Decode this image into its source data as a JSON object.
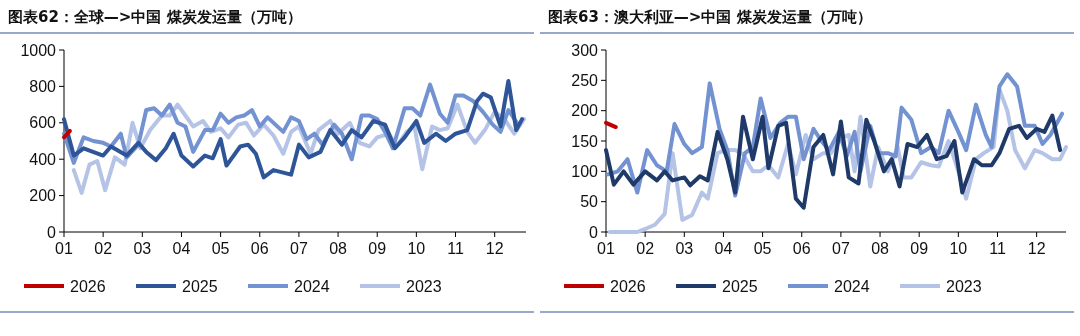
{
  "chart_data": [
    {
      "type": "line",
      "title": "图表62：全球—>中国 煤炭发运量（万吨）",
      "xlim": [
        1,
        12.8
      ],
      "xticks": [
        {
          "value": 1,
          "label": "01"
        },
        {
          "value": 2,
          "label": "02"
        },
        {
          "value": 3,
          "label": "03"
        },
        {
          "value": 4,
          "label": "04"
        },
        {
          "value": 5,
          "label": "05"
        },
        {
          "value": 6,
          "label": "06"
        },
        {
          "value": 7,
          "label": "07"
        },
        {
          "value": 8,
          "label": "08"
        },
        {
          "value": 9,
          "label": "09"
        },
        {
          "value": 10,
          "label": "10"
        },
        {
          "value": 11,
          "label": "11"
        },
        {
          "value": 12,
          "label": "12"
        }
      ],
      "ylim": [
        0,
        1000
      ],
      "yticks": [
        0,
        200,
        400,
        600,
        800,
        1000
      ],
      "grid": false,
      "legend": "bottom",
      "marker": "none",
      "line_style": "solid",
      "series": [
        {
          "name": "2026",
          "color": "#c00000",
          "x": [
            1.0,
            1.15
          ],
          "values": [
            520,
            555
          ]
        },
        {
          "name": "2025",
          "color": "#2e5597",
          "x": [
            1.0,
            1.25,
            1.5,
            2.0,
            2.2,
            2.6,
            2.9,
            3.1,
            3.35,
            3.6,
            3.8,
            4.0,
            4.3,
            4.6,
            4.8,
            5.0,
            5.15,
            5.5,
            5.7,
            5.9,
            6.1,
            6.35,
            6.8,
            7.0,
            7.25,
            7.55,
            7.8,
            8.1,
            8.35,
            8.6,
            8.9,
            9.2,
            9.45,
            9.7,
            10.0,
            10.2,
            10.5,
            10.75,
            11.0,
            11.3,
            11.55,
            11.7,
            11.9,
            12.15,
            12.35,
            12.55,
            12.7
          ],
          "values": [
            620,
            420,
            460,
            420,
            470,
            420,
            490,
            440,
            395,
            460,
            540,
            420,
            360,
            420,
            405,
            510,
            365,
            470,
            480,
            430,
            300,
            340,
            315,
            480,
            410,
            440,
            560,
            480,
            560,
            520,
            610,
            590,
            460,
            520,
            610,
            490,
            540,
            500,
            540,
            560,
            720,
            760,
            740,
            580,
            830,
            560,
            620
          ]
        },
        {
          "name": "2024",
          "color": "#7392d1",
          "x": [
            1.0,
            1.25,
            1.5,
            1.75,
            2.0,
            2.2,
            2.45,
            2.6,
            2.9,
            3.1,
            3.3,
            3.5,
            3.7,
            3.9,
            4.1,
            4.3,
            4.6,
            4.8,
            5.0,
            5.2,
            5.4,
            5.6,
            5.8,
            6.0,
            6.2,
            6.4,
            6.6,
            6.8,
            7.0,
            7.2,
            7.4,
            7.6,
            7.9,
            8.1,
            8.35,
            8.6,
            8.8,
            9.0,
            9.2,
            9.4,
            9.7,
            9.9,
            10.1,
            10.35,
            10.6,
            10.8,
            11.0,
            11.2,
            11.45,
            11.7,
            11.95,
            12.15,
            12.35,
            12.6
          ],
          "values": [
            540,
            380,
            520,
            500,
            490,
            470,
            540,
            410,
            480,
            670,
            680,
            640,
            700,
            600,
            580,
            440,
            560,
            560,
            650,
            600,
            630,
            640,
            670,
            580,
            630,
            590,
            550,
            630,
            610,
            510,
            540,
            480,
            590,
            540,
            400,
            640,
            640,
            620,
            550,
            460,
            680,
            680,
            640,
            810,
            650,
            600,
            750,
            750,
            720,
            660,
            590,
            550,
            670,
            590
          ]
        },
        {
          "name": "2023",
          "color": "#b4c3e6",
          "x": [
            1.25,
            1.45,
            1.65,
            1.85,
            2.05,
            2.3,
            2.55,
            2.75,
            2.95,
            3.2,
            3.5,
            3.7,
            3.9,
            4.1,
            4.3,
            4.55,
            4.75,
            5.0,
            5.2,
            5.45,
            5.65,
            5.85,
            6.1,
            6.35,
            6.6,
            6.8,
            7.0,
            7.3,
            7.5,
            7.8,
            8.0,
            8.3,
            8.55,
            8.8,
            9.0,
            9.3,
            9.5,
            9.75,
            9.95,
            10.15,
            10.4,
            10.6,
            10.8,
            11.05,
            11.3,
            11.5,
            11.75,
            12.0,
            12.25,
            12.5,
            12.75
          ],
          "values": [
            340,
            215,
            370,
            390,
            230,
            410,
            370,
            600,
            460,
            560,
            640,
            640,
            700,
            640,
            580,
            610,
            550,
            570,
            520,
            590,
            600,
            530,
            590,
            530,
            430,
            550,
            580,
            430,
            560,
            610,
            540,
            600,
            490,
            470,
            520,
            540,
            470,
            550,
            580,
            345,
            580,
            560,
            570,
            700,
            550,
            490,
            560,
            660,
            620,
            540,
            620
          ]
        }
      ]
    },
    {
      "type": "line",
      "title": "图表63：澳大利亚—>中国 煤炭发运量（万吨）",
      "xlim": [
        1,
        12.75
      ],
      "xticks": [
        {
          "value": 1,
          "label": "01"
        },
        {
          "value": 2,
          "label": "02"
        },
        {
          "value": 3,
          "label": "03"
        },
        {
          "value": 4,
          "label": "04"
        },
        {
          "value": 5,
          "label": "05"
        },
        {
          "value": 6,
          "label": "06"
        },
        {
          "value": 7,
          "label": "07"
        },
        {
          "value": 8,
          "label": "08"
        },
        {
          "value": 9,
          "label": "09"
        },
        {
          "value": 10,
          "label": "10"
        },
        {
          "value": 11,
          "label": "11"
        },
        {
          "value": 12,
          "label": "12"
        }
      ],
      "ylim": [
        0,
        300
      ],
      "yticks": [
        0,
        50,
        100,
        150,
        200,
        250,
        300
      ],
      "grid": false,
      "legend": "bottom",
      "marker": "none",
      "line_style": "solid",
      "series": [
        {
          "name": "2026",
          "color": "#c00000",
          "x": [
            1.0,
            1.25
          ],
          "values": [
            180,
            173
          ]
        },
        {
          "name": "2025",
          "color": "#1f3a68",
          "x": [
            1.0,
            1.2,
            1.45,
            1.7,
            2.0,
            2.3,
            2.5,
            2.7,
            3.0,
            3.15,
            3.4,
            3.6,
            3.85,
            4.1,
            4.3,
            4.5,
            4.75,
            5.0,
            5.15,
            5.4,
            5.6,
            5.85,
            6.05,
            6.3,
            6.55,
            6.8,
            7.0,
            7.2,
            7.45,
            7.65,
            7.85,
            8.1,
            8.3,
            8.5,
            8.7,
            8.95,
            9.2,
            9.45,
            9.7,
            9.9,
            10.1,
            10.4,
            10.6,
            10.85,
            11.05,
            11.3,
            11.55,
            11.75,
            12.0,
            12.2,
            12.4,
            12.6
          ],
          "values": [
            135,
            78,
            100,
            78,
            100,
            85,
            100,
            85,
            90,
            77,
            92,
            85,
            165,
            120,
            65,
            190,
            120,
            190,
            105,
            175,
            180,
            55,
            40,
            140,
            160,
            95,
            182,
            90,
            80,
            185,
            150,
            100,
            120,
            75,
            145,
            140,
            160,
            120,
            125,
            150,
            65,
            120,
            110,
            110,
            130,
            170,
            175,
            155,
            170,
            165,
            192,
            135
          ]
        },
        {
          "name": "2024",
          "color": "#7392d1",
          "x": [
            1.05,
            1.3,
            1.55,
            1.8,
            2.05,
            2.3,
            2.55,
            2.75,
            3.0,
            3.2,
            3.45,
            3.65,
            3.9,
            4.1,
            4.3,
            4.55,
            4.75,
            4.95,
            5.2,
            5.45,
            5.65,
            5.85,
            6.05,
            6.3,
            6.5,
            6.7,
            6.95,
            7.15,
            7.35,
            7.5,
            7.75,
            7.95,
            8.2,
            8.4,
            8.55,
            8.8,
            9.05,
            9.3,
            9.5,
            9.75,
            10.0,
            10.2,
            10.45,
            10.7,
            10.85,
            11.05,
            11.25,
            11.5,
            11.7,
            11.95,
            12.15,
            12.35,
            12.65
          ],
          "values": [
            95,
            100,
            120,
            65,
            135,
            110,
            100,
            178,
            145,
            130,
            140,
            245,
            170,
            135,
            60,
            130,
            140,
            220,
            155,
            180,
            190,
            190,
            120,
            170,
            150,
            135,
            165,
            125,
            165,
            100,
            175,
            130,
            130,
            125,
            205,
            185,
            130,
            140,
            130,
            200,
            165,
            135,
            210,
            160,
            140,
            240,
            260,
            240,
            175,
            175,
            145,
            160,
            195
          ]
        },
        {
          "name": "2023",
          "color": "#b4c3e6",
          "x": [
            1.1,
            1.3,
            1.55,
            1.8,
            2.0,
            2.25,
            2.5,
            2.7,
            2.95,
            3.2,
            3.45,
            3.6,
            3.85,
            4.05,
            4.3,
            4.5,
            4.75,
            4.95,
            5.15,
            5.4,
            5.65,
            5.85,
            6.1,
            6.3,
            6.55,
            6.75,
            7.0,
            7.2,
            7.35,
            7.5,
            7.75,
            7.95,
            8.2,
            8.45,
            8.6,
            8.8,
            9.05,
            9.3,
            9.5,
            9.75,
            10.0,
            10.2,
            10.45,
            10.65,
            10.9,
            11.05,
            11.25,
            11.45,
            11.7,
            11.95,
            12.15,
            12.4,
            12.6,
            12.75
          ],
          "values": [
            0,
            0,
            0,
            0,
            5,
            12,
            30,
            130,
            20,
            28,
            65,
            55,
            130,
            135,
            135,
            128,
            100,
            100,
            110,
            90,
            145,
            95,
            160,
            120,
            130,
            130,
            155,
            160,
            100,
            190,
            75,
            140,
            100,
            140,
            90,
            90,
            115,
            110,
            108,
            150,
            100,
            55,
            120,
            130,
            140,
            235,
            200,
            135,
            105,
            135,
            130,
            120,
            120,
            140
          ]
        }
      ]
    }
  ]
}
